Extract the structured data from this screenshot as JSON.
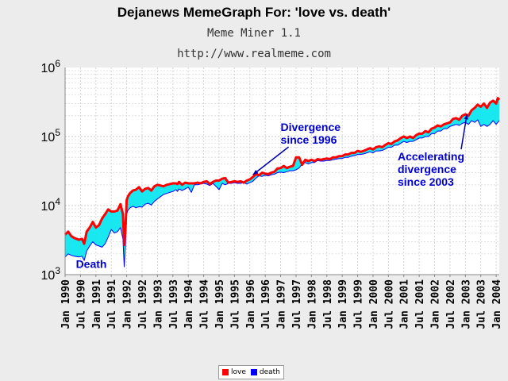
{
  "header": {
    "title": "Dejanews MemeGraph For: 'love vs. death'",
    "subtitle": "Meme Miner 1.1",
    "url": "http://www.realmeme.com"
  },
  "chart_data": {
    "type": "line",
    "yscale": "log",
    "ylim": [
      1000,
      1000000
    ],
    "yticks": [
      {
        "value": 1000,
        "label": "10^3"
      },
      {
        "value": 10000,
        "label": "10^4"
      },
      {
        "value": 100000,
        "label": "10^5"
      },
      {
        "value": 1000000,
        "label": "10^6"
      }
    ],
    "xlim": [
      1990.0,
      2004.1
    ],
    "xticks": [
      {
        "t": 1990.0,
        "label": "Jan 1990"
      },
      {
        "t": 1990.5,
        "label": "Jul 1990"
      },
      {
        "t": 1991.0,
        "label": "Jan 1991"
      },
      {
        "t": 1991.5,
        "label": "Jul 1991"
      },
      {
        "t": 1992.0,
        "label": "Jan 1992"
      },
      {
        "t": 1992.5,
        "label": "Jul 1992"
      },
      {
        "t": 1993.0,
        "label": "Jan 1993"
      },
      {
        "t": 1993.5,
        "label": "Jul 1993"
      },
      {
        "t": 1994.0,
        "label": "Jan 1994"
      },
      {
        "t": 1994.5,
        "label": "Jul 1994"
      },
      {
        "t": 1995.0,
        "label": "Jan 1995"
      },
      {
        "t": 1995.5,
        "label": "Jul 1995"
      },
      {
        "t": 1996.0,
        "label": "Jan 1996"
      },
      {
        "t": 1996.5,
        "label": "Jul 1996"
      },
      {
        "t": 1997.0,
        "label": "Jan 1997"
      },
      {
        "t": 1997.5,
        "label": "Jul 1997"
      },
      {
        "t": 1998.0,
        "label": "Jan 1998"
      },
      {
        "t": 1998.5,
        "label": "Jul 1998"
      },
      {
        "t": 1999.0,
        "label": "Jan 1999"
      },
      {
        "t": 1999.5,
        "label": "Jul 1999"
      },
      {
        "t": 2000.0,
        "label": "Jan 2000"
      },
      {
        "t": 2000.5,
        "label": "Jul 2000"
      },
      {
        "t": 2001.0,
        "label": "Jan 2001"
      },
      {
        "t": 2001.5,
        "label": "Jul 2001"
      },
      {
        "t": 2002.0,
        "label": "Jan 2002"
      },
      {
        "t": 2002.5,
        "label": "Jul 2002"
      },
      {
        "t": 2003.0,
        "label": "Jan 2003"
      },
      {
        "t": 2003.5,
        "label": "Jul 2003"
      },
      {
        "t": 2004.0,
        "label": "Jan 2004"
      }
    ],
    "grid": true,
    "fill_between": {
      "color": "#00e5ee"
    },
    "series": [
      {
        "name": "love",
        "color": "#ff0000",
        "x": [
          1990.0,
          1990.1,
          1990.2,
          1990.3,
          1990.45,
          1990.55,
          1990.62,
          1990.7,
          1990.8,
          1990.9,
          1991.0,
          1991.1,
          1991.2,
          1991.3,
          1991.4,
          1991.5,
          1991.6,
          1991.7,
          1991.8,
          1991.88,
          1991.92,
          1991.96,
          1992.0,
          1992.04,
          1992.1,
          1992.2,
          1992.3,
          1992.4,
          1992.5,
          1992.6,
          1992.7,
          1992.8,
          1992.9,
          1993.0,
          1993.1,
          1993.2,
          1993.3,
          1993.4,
          1993.5,
          1993.6,
          1993.65,
          1993.7,
          1993.8,
          1993.9,
          1994.0,
          1994.1,
          1994.2,
          1994.3,
          1994.4,
          1994.5,
          1994.6,
          1994.7,
          1994.8,
          1994.9,
          1995.0,
          1995.1,
          1995.2,
          1995.3,
          1995.4,
          1995.5,
          1995.6,
          1995.7,
          1995.8,
          1995.9,
          1996.0,
          1996.1,
          1996.2,
          1996.3,
          1996.4,
          1996.5,
          1996.6,
          1996.7,
          1996.8,
          1996.9,
          1997.0,
          1997.1,
          1997.2,
          1997.3,
          1997.4,
          1997.5,
          1997.6,
          1997.7,
          1997.8,
          1997.9,
          1998.0,
          1998.1,
          1998.2,
          1998.3,
          1998.4,
          1998.5,
          1998.6,
          1998.7,
          1998.8,
          1998.9,
          1999.0,
          1999.1,
          1999.2,
          1999.3,
          1999.4,
          1999.5,
          1999.6,
          1999.7,
          1999.8,
          1999.9,
          2000.0,
          2000.1,
          2000.2,
          2000.3,
          2000.4,
          2000.5,
          2000.6,
          2000.7,
          2000.8,
          2000.9,
          2001.0,
          2001.1,
          2001.2,
          2001.3,
          2001.4,
          2001.5,
          2001.6,
          2001.7,
          2001.8,
          2001.9,
          2002.0,
          2002.1,
          2002.2,
          2002.3,
          2002.4,
          2002.5,
          2002.6,
          2002.7,
          2002.8,
          2002.9,
          2003.0,
          2003.1,
          2003.2,
          2003.3,
          2003.4,
          2003.5,
          2003.6,
          2003.7,
          2003.8,
          2003.9,
          2004.0,
          2004.05,
          2004.1
        ],
        "values": [
          3800,
          4200,
          3600,
          3400,
          3200,
          3300,
          2800,
          4200,
          4800,
          5800,
          4800,
          5200,
          6500,
          7500,
          8800,
          8200,
          8200,
          8500,
          10500,
          7500,
          2700,
          4500,
          12000,
          13500,
          15000,
          16500,
          17000,
          18500,
          16000,
          17500,
          18000,
          16500,
          19000,
          20000,
          19500,
          19000,
          20000,
          20500,
          21000,
          21000,
          20500,
          22000,
          20000,
          21500,
          21000,
          21000,
          21000,
          21500,
          21000,
          22000,
          22500,
          20500,
          22000,
          23000,
          23000,
          24500,
          25000,
          21500,
          22000,
          22500,
          22000,
          22500,
          21500,
          23000,
          24000,
          26000,
          28500,
          27500,
          30000,
          29000,
          28500,
          30000,
          31000,
          34500,
          35000,
          37500,
          35000,
          36500,
          37500,
          50000,
          50000,
          39000,
          46000,
          44000,
          46000,
          44000,
          47000,
          46000,
          47000,
          48000,
          47000,
          50000,
          50000,
          52000,
          52000,
          55000,
          55000,
          58000,
          58000,
          62000,
          60000,
          62000,
          65000,
          68000,
          65000,
          70000,
          72000,
          70000,
          76000,
          80000,
          78000,
          85000,
          88000,
          95000,
          100000,
          95000,
          100000,
          95000,
          105000,
          110000,
          110000,
          120000,
          115000,
          130000,
          135000,
          145000,
          140000,
          150000,
          155000,
          160000,
          180000,
          185000,
          175000,
          200000,
          210000,
          200000,
          240000,
          260000,
          290000,
          270000,
          300000,
          260000,
          310000,
          330000,
          300000,
          360000,
          340000
        ]
      },
      {
        "name": "death",
        "color": "#0000ff",
        "x": [
          1990.0,
          1990.1,
          1990.2,
          1990.3,
          1990.45,
          1990.55,
          1990.62,
          1990.7,
          1990.8,
          1990.9,
          1991.0,
          1991.1,
          1991.2,
          1991.3,
          1991.4,
          1991.5,
          1991.6,
          1991.7,
          1991.8,
          1991.88,
          1991.92,
          1991.96,
          1992.0,
          1992.04,
          1992.1,
          1992.2,
          1992.3,
          1992.4,
          1992.5,
          1992.6,
          1992.7,
          1992.8,
          1992.9,
          1993.0,
          1993.1,
          1993.2,
          1993.3,
          1993.4,
          1993.5,
          1993.6,
          1993.65,
          1993.7,
          1993.8,
          1993.9,
          1994.0,
          1994.1,
          1994.2,
          1994.3,
          1994.4,
          1994.5,
          1994.6,
          1994.7,
          1994.8,
          1994.9,
          1995.0,
          1995.1,
          1995.2,
          1995.3,
          1995.4,
          1995.5,
          1995.6,
          1995.7,
          1995.8,
          1995.9,
          1996.0,
          1996.1,
          1996.2,
          1996.3,
          1996.4,
          1996.5,
          1996.6,
          1996.7,
          1996.8,
          1996.9,
          1997.0,
          1997.1,
          1997.2,
          1997.3,
          1997.4,
          1997.5,
          1997.6,
          1997.7,
          1997.8,
          1997.9,
          1998.0,
          1998.1,
          1998.2,
          1998.3,
          1998.4,
          1998.5,
          1998.6,
          1998.7,
          1998.8,
          1998.9,
          1999.0,
          1999.1,
          1999.2,
          1999.3,
          1999.4,
          1999.5,
          1999.6,
          1999.7,
          1999.8,
          1999.9,
          2000.0,
          2000.1,
          2000.2,
          2000.3,
          2000.4,
          2000.5,
          2000.6,
          2000.7,
          2000.8,
          2000.9,
          2001.0,
          2001.1,
          2001.2,
          2001.3,
          2001.4,
          2001.5,
          2001.6,
          2001.7,
          2001.8,
          2001.9,
          2002.0,
          2002.1,
          2002.2,
          2002.3,
          2002.4,
          2002.5,
          2002.6,
          2002.7,
          2002.8,
          2002.9,
          2003.0,
          2003.1,
          2003.2,
          2003.3,
          2003.4,
          2003.5,
          2003.6,
          2003.7,
          2003.8,
          2003.9,
          2004.0,
          2004.05,
          2004.1
        ],
        "values": [
          1800,
          2000,
          1900,
          1850,
          1800,
          1850,
          1600,
          2200,
          2600,
          3000,
          2700,
          2600,
          2500,
          2800,
          3500,
          4500,
          4000,
          4200,
          4800,
          3300,
          1300,
          2600,
          7500,
          8500,
          9200,
          9800,
          9300,
          9600,
          9500,
          10500,
          10800,
          10200,
          11500,
          12500,
          13500,
          14500,
          15000,
          15500,
          16000,
          17000,
          16000,
          17500,
          16500,
          17500,
          18500,
          15500,
          20000,
          20000,
          20500,
          21000,
          20500,
          19500,
          21000,
          19000,
          17000,
          21000,
          20000,
          21000,
          21000,
          21500,
          21000,
          21000,
          21500,
          20500,
          21500,
          22500,
          25000,
          27000,
          26500,
          27500,
          27000,
          28000,
          28500,
          30000,
          30500,
          30000,
          31000,
          32000,
          32000,
          33000,
          35000,
          40000,
          42000,
          40000,
          42000,
          42000,
          45000,
          44000,
          44000,
          45000,
          45000,
          46000,
          47000,
          48000,
          48000,
          50000,
          50000,
          52000,
          53000,
          55000,
          55000,
          56000,
          58000,
          60000,
          58000,
          62000,
          62000,
          63000,
          66000,
          70000,
          70000,
          75000,
          75000,
          80000,
          85000,
          82000,
          85000,
          85000,
          90000,
          95000,
          95000,
          100000,
          100000,
          110000,
          110000,
          120000,
          120000,
          130000,
          130000,
          140000,
          145000,
          150000,
          145000,
          155000,
          160000,
          150000,
          170000,
          160000,
          175000,
          140000,
          150000,
          140000,
          150000,
          170000,
          150000,
          160000,
          170000
        ]
      }
    ],
    "annotations": [
      {
        "text": "Divergence\nsince 1996",
        "at": [
          1997.0,
          120000
        ],
        "arrow_to": [
          1996.1,
          28000
        ]
      },
      {
        "text": "Accelerating\ndivergence\nsince 2003",
        "at": [
          2000.8,
          45000
        ],
        "arrow_to": [
          2003.05,
          210000
        ]
      },
      {
        "text": "Death",
        "at": [
          1990.35,
          1250
        ]
      }
    ],
    "legend": {
      "position": "bottom-center"
    }
  }
}
